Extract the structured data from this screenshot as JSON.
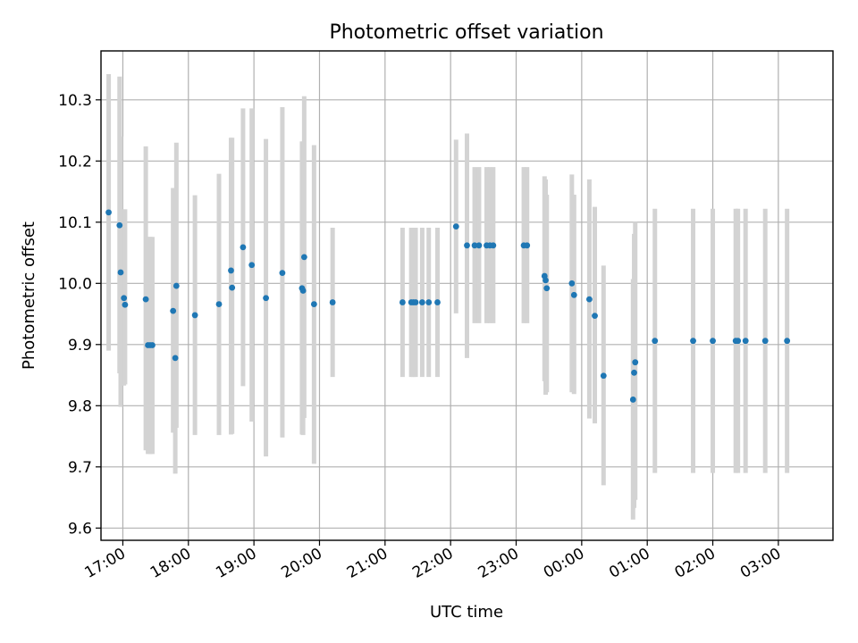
{
  "chart_data": {
    "type": "scatter",
    "title": "Photometric offset variation",
    "xlabel": "UTC time",
    "ylabel": "Photometric offset",
    "grid": true,
    "xlim": [
      "16:40",
      "03:50"
    ],
    "ylim": [
      9.58,
      10.38
    ],
    "xtick_labels": [
      "17:00",
      "18:00",
      "19:00",
      "20:00",
      "21:00",
      "22:00",
      "23:00",
      "00:00",
      "01:00",
      "02:00",
      "03:00"
    ],
    "ytick_values": [
      9.6,
      9.7,
      9.8,
      9.9,
      10.0,
      10.1,
      10.2,
      10.3
    ],
    "ytick_labels": [
      "9.6",
      "9.7",
      "9.8",
      "9.9",
      "10.0",
      "10.1",
      "10.2",
      "10.3"
    ],
    "colors": {
      "points": "#1f77b4",
      "errorbars": "#d3d3d3",
      "grid": "#b0b0b0"
    },
    "series": [
      {
        "x": [
          "16:47",
          "16:57",
          "16:58",
          "17:01",
          "17:02",
          "17:21",
          "17:23",
          "17:25",
          "17:27",
          "17:46",
          "17:48",
          "17:49",
          "18:06",
          "18:28",
          "18:39",
          "18:40",
          "18:50",
          "18:58",
          "19:11",
          "19:26",
          "19:44",
          "19:45",
          "19:46",
          "19:55",
          "20:12",
          "21:16",
          "21:24",
          "21:26",
          "21:28",
          "21:34",
          "21:40",
          "21:48",
          "22:05",
          "22:15",
          "22:22",
          "22:26",
          "22:33",
          "22:36",
          "22:39",
          "23:07",
          "23:10",
          "23:26",
          "23:27",
          "23:28",
          "23:51",
          "23:53",
          "00:07",
          "00:12",
          "00:20",
          "00:47",
          "00:48",
          "00:49",
          "01:07",
          "01:42",
          "02:00",
          "02:21",
          "02:23",
          "02:30",
          "02:48",
          "03:08"
        ],
        "y": [
          10.116,
          10.095,
          10.018,
          9.976,
          9.965,
          9.974,
          9.899,
          9.899,
          9.899,
          9.955,
          9.878,
          9.996,
          9.948,
          9.966,
          10.021,
          9.993,
          10.059,
          10.03,
          9.976,
          10.017,
          9.992,
          9.988,
          10.043,
          9.966,
          9.969,
          9.969,
          9.969,
          9.969,
          9.969,
          9.969,
          9.969,
          9.969,
          10.093,
          10.062,
          10.062,
          10.062,
          10.062,
          10.062,
          10.062,
          10.062,
          10.062,
          10.012,
          10.005,
          9.992,
          10.0,
          9.981,
          9.974,
          9.947,
          9.849,
          9.81,
          9.854,
          9.871,
          9.906,
          9.906,
          9.906,
          9.906,
          9.906,
          9.906,
          9.906,
          9.906
        ],
        "yerr_low": [
          9.89,
          9.853,
          9.798,
          9.833,
          9.835,
          9.727,
          9.721,
          9.721,
          9.721,
          9.756,
          9.689,
          9.764,
          9.752,
          9.752,
          9.753,
          9.754,
          9.832,
          9.774,
          9.717,
          9.748,
          9.753,
          9.752,
          9.78,
          9.705,
          9.847,
          9.847,
          9.847,
          9.847,
          9.847,
          9.847,
          9.847,
          9.847,
          9.951,
          9.878,
          9.935,
          9.935,
          9.935,
          9.935,
          9.935,
          9.935,
          9.935,
          9.84,
          9.818,
          9.822,
          9.822,
          9.819,
          9.779,
          9.771,
          9.67,
          9.614,
          9.633,
          9.646,
          9.69,
          9.69,
          9.69,
          9.69,
          9.69,
          9.69,
          9.69,
          9.69
        ],
        "yerr_high": [
          10.342,
          10.338,
          10.24,
          10.121,
          10.121,
          10.224,
          10.076,
          10.076,
          10.076,
          10.156,
          10.07,
          10.23,
          10.144,
          10.179,
          10.238,
          10.238,
          10.286,
          10.286,
          10.236,
          10.288,
          10.232,
          10.232,
          10.306,
          10.226,
          10.091,
          10.091,
          10.091,
          10.091,
          10.091,
          10.091,
          10.091,
          10.091,
          10.235,
          10.245,
          10.19,
          10.19,
          10.19,
          10.19,
          10.19,
          10.19,
          10.19,
          10.175,
          10.17,
          10.145,
          10.178,
          10.145,
          10.17,
          10.125,
          10.029,
          10.007,
          10.081,
          10.1,
          10.122,
          10.122,
          10.122,
          10.122,
          10.122,
          10.122,
          10.122,
          10.122
        ]
      }
    ]
  }
}
